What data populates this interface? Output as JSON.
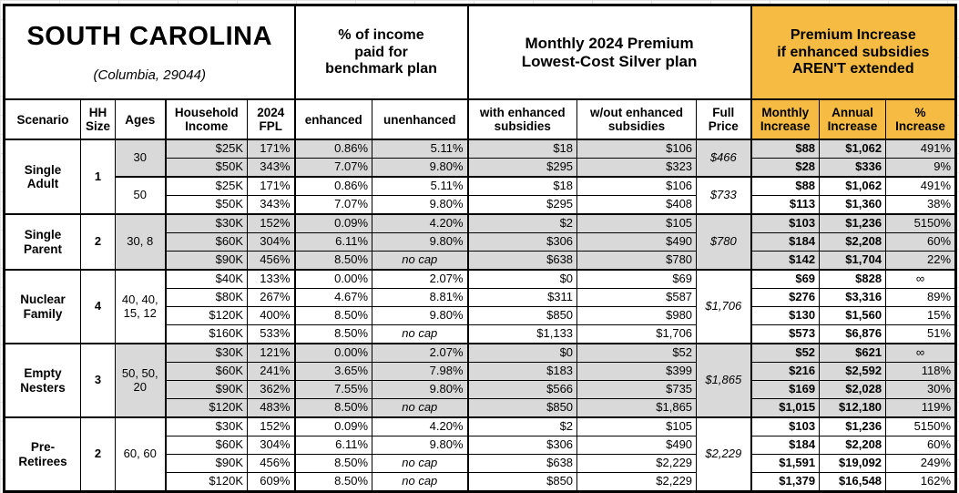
{
  "title": {
    "state": "SOUTH CAROLINA",
    "location": "(Columbia, 29044)"
  },
  "colors": {
    "accent_orange": "#F5BB42",
    "row_shade_gray": "#D9D9D9",
    "border_black": "#000000"
  },
  "group_headers": {
    "pct_income": "% of income\npaid for\nbenchmark plan",
    "premium": "Monthly 2024 Premium\nLowest-Cost Silver plan",
    "increase": "Premium Increase\nif enhanced subsidies\nAREN'T extended"
  },
  "column_headers": {
    "scenario": "Scenario",
    "hh_size": "HH Size",
    "ages": "Ages",
    "income": "Household Income",
    "fpl": "2024 FPL",
    "enhanced": "enhanced",
    "unenhanced": "unenhanced",
    "with_sub": "with enhanced subsidies",
    "wout_sub": "w/out enhanced subsidies",
    "full_price": "Full Price",
    "monthly": "Monthly Increase",
    "annual": "Annual Increase",
    "pct": "% Increase"
  },
  "groups": [
    {
      "scenario": "Single Adult",
      "hh_size": "1",
      "subgroups": [
        {
          "ages": "30",
          "shaded": true,
          "full_price": "$466",
          "rows": [
            {
              "income": "$25K",
              "fpl": "171%",
              "enhanced": "0.86%",
              "unenhanced": "5.11%",
              "with_sub": "$18",
              "wout_sub": "$106",
              "monthly": "$88",
              "annual": "$1,062",
              "pct": "491%"
            },
            {
              "income": "$50K",
              "fpl": "343%",
              "enhanced": "7.07%",
              "unenhanced": "9.80%",
              "with_sub": "$295",
              "wout_sub": "$323",
              "monthly": "$28",
              "annual": "$336",
              "pct": "9%"
            }
          ]
        },
        {
          "ages": "50",
          "shaded": false,
          "full_price": "$733",
          "rows": [
            {
              "income": "$25K",
              "fpl": "171%",
              "enhanced": "0.86%",
              "unenhanced": "5.11%",
              "with_sub": "$18",
              "wout_sub": "$106",
              "monthly": "$88",
              "annual": "$1,062",
              "pct": "491%"
            },
            {
              "income": "$50K",
              "fpl": "343%",
              "enhanced": "7.07%",
              "unenhanced": "9.80%",
              "with_sub": "$295",
              "wout_sub": "$408",
              "monthly": "$113",
              "annual": "$1,360",
              "pct": "38%"
            }
          ]
        }
      ]
    },
    {
      "scenario": "Single Parent",
      "hh_size": "2",
      "subgroups": [
        {
          "ages": "30, 8",
          "shaded": true,
          "full_price": "$780",
          "rows": [
            {
              "income": "$30K",
              "fpl": "152%",
              "enhanced": "0.09%",
              "unenhanced": "4.20%",
              "with_sub": "$2",
              "wout_sub": "$105",
              "monthly": "$103",
              "annual": "$1,236",
              "pct": "5150%"
            },
            {
              "income": "$60K",
              "fpl": "304%",
              "enhanced": "6.11%",
              "unenhanced": "9.80%",
              "with_sub": "$306",
              "wout_sub": "$490",
              "monthly": "$184",
              "annual": "$2,208",
              "pct": "60%"
            },
            {
              "income": "$90K",
              "fpl": "456%",
              "enhanced": "8.50%",
              "unenhanced": "no cap",
              "with_sub": "$638",
              "wout_sub": "$780",
              "monthly": "$142",
              "annual": "$1,704",
              "pct": "22%"
            }
          ]
        }
      ]
    },
    {
      "scenario": "Nuclear Family",
      "hh_size": "4",
      "subgroups": [
        {
          "ages": "40, 40, 15, 12",
          "shaded": false,
          "full_price": "$1,706",
          "rows": [
            {
              "income": "$40K",
              "fpl": "133%",
              "enhanced": "0.00%",
              "unenhanced": "2.07%",
              "with_sub": "$0",
              "wout_sub": "$69",
              "monthly": "$69",
              "annual": "$828",
              "pct": "∞"
            },
            {
              "income": "$80K",
              "fpl": "267%",
              "enhanced": "4.67%",
              "unenhanced": "8.81%",
              "with_sub": "$311",
              "wout_sub": "$587",
              "monthly": "$276",
              "annual": "$3,316",
              "pct": "89%"
            },
            {
              "income": "$120K",
              "fpl": "400%",
              "enhanced": "8.50%",
              "unenhanced": "9.80%",
              "with_sub": "$850",
              "wout_sub": "$980",
              "monthly": "$130",
              "annual": "$1,560",
              "pct": "15%"
            },
            {
              "income": "$160K",
              "fpl": "533%",
              "enhanced": "8.50%",
              "unenhanced": "no cap",
              "with_sub": "$1,133",
              "wout_sub": "$1,706",
              "monthly": "$573",
              "annual": "$6,876",
              "pct": "51%"
            }
          ]
        }
      ]
    },
    {
      "scenario": "Empty Nesters",
      "hh_size": "3",
      "subgroups": [
        {
          "ages": "50, 50, 20",
          "shaded": true,
          "full_price": "$1,865",
          "rows": [
            {
              "income": "$30K",
              "fpl": "121%",
              "enhanced": "0.00%",
              "unenhanced": "2.07%",
              "with_sub": "$0",
              "wout_sub": "$52",
              "monthly": "$52",
              "annual": "$621",
              "pct": "∞"
            },
            {
              "income": "$60K",
              "fpl": "241%",
              "enhanced": "3.65%",
              "unenhanced": "7.98%",
              "with_sub": "$183",
              "wout_sub": "$399",
              "monthly": "$216",
              "annual": "$2,592",
              "pct": "118%"
            },
            {
              "income": "$90K",
              "fpl": "362%",
              "enhanced": "7.55%",
              "unenhanced": "9.80%",
              "with_sub": "$566",
              "wout_sub": "$735",
              "monthly": "$169",
              "annual": "$2,028",
              "pct": "30%"
            },
            {
              "income": "$120K",
              "fpl": "483%",
              "enhanced": "8.50%",
              "unenhanced": "no cap",
              "with_sub": "$850",
              "wout_sub": "$1,865",
              "monthly": "$1,015",
              "annual": "$12,180",
              "pct": "119%"
            }
          ]
        }
      ]
    },
    {
      "scenario": "Pre-Retirees",
      "hh_size": "2",
      "subgroups": [
        {
          "ages": "60, 60",
          "shaded": false,
          "full_price": "$2,229",
          "rows": [
            {
              "income": "$30K",
              "fpl": "152%",
              "enhanced": "0.09%",
              "unenhanced": "4.20%",
              "with_sub": "$2",
              "wout_sub": "$105",
              "monthly": "$103",
              "annual": "$1,236",
              "pct": "5150%"
            },
            {
              "income": "$60K",
              "fpl": "304%",
              "enhanced": "6.11%",
              "unenhanced": "9.80%",
              "with_sub": "$306",
              "wout_sub": "$490",
              "monthly": "$184",
              "annual": "$2,208",
              "pct": "60%"
            },
            {
              "income": "$90K",
              "fpl": "456%",
              "enhanced": "8.50%",
              "unenhanced": "no cap",
              "with_sub": "$638",
              "wout_sub": "$2,229",
              "monthly": "$1,591",
              "annual": "$19,092",
              "pct": "249%"
            },
            {
              "income": "$120K",
              "fpl": "609%",
              "enhanced": "8.50%",
              "unenhanced": "no cap",
              "with_sub": "$850",
              "wout_sub": "$2,229",
              "monthly": "$1,379",
              "annual": "$16,548",
              "pct": "162%"
            }
          ]
        }
      ]
    }
  ]
}
